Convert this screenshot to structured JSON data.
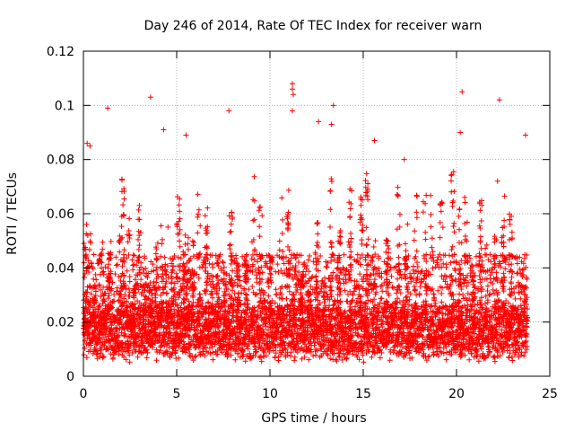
{
  "chart_data": {
    "type": "scatter",
    "title": "Day 246 of 2014, Rate Of TEC Index for receiver warn",
    "xlabel": "GPS time / hours",
    "ylabel": "ROTI / TECUs",
    "xlim": [
      0,
      25
    ],
    "ylim": [
      0,
      0.12
    ],
    "x_ticks": [
      0,
      5,
      10,
      15,
      20,
      25
    ],
    "x_tick_labels": [
      "0",
      "5",
      "10",
      "15",
      "20",
      "25"
    ],
    "y_ticks": [
      0,
      0.02,
      0.04,
      0.06,
      0.08,
      0.1,
      0.12
    ],
    "y_tick_labels": [
      "0",
      "0.02",
      "0.04",
      "0.06",
      "0.08",
      "0.1",
      "0.12"
    ],
    "grid": true,
    "marker": "+",
    "marker_color": "#ff0000",
    "series": [
      {
        "name": "ROTI",
        "x_start": 0.0,
        "x_end": 23.8,
        "typical_range": [
          0.005,
          0.03
        ],
        "notable_points": [
          {
            "x": 3.6,
            "y": 0.103
          },
          {
            "x": 11.2,
            "y": 0.108
          },
          {
            "x": 11.2,
            "y": 0.106
          },
          {
            "x": 11.25,
            "y": 0.104
          },
          {
            "x": 20.3,
            "y": 0.105
          },
          {
            "x": 22.3,
            "y": 0.102
          },
          {
            "x": 1.3,
            "y": 0.099
          },
          {
            "x": 13.4,
            "y": 0.1
          },
          {
            "x": 11.2,
            "y": 0.098
          },
          {
            "x": 7.8,
            "y": 0.098
          },
          {
            "x": 12.6,
            "y": 0.094
          },
          {
            "x": 13.3,
            "y": 0.093
          },
          {
            "x": 4.3,
            "y": 0.091
          },
          {
            "x": 0.2,
            "y": 0.086
          },
          {
            "x": 0.35,
            "y": 0.085
          },
          {
            "x": 23.7,
            "y": 0.089
          },
          {
            "x": 20.2,
            "y": 0.09
          },
          {
            "x": 15.6,
            "y": 0.087
          },
          {
            "x": 5.5,
            "y": 0.089
          },
          {
            "x": 17.2,
            "y": 0.08
          },
          {
            "x": 22.2,
            "y": 0.072
          }
        ]
      }
    ]
  }
}
